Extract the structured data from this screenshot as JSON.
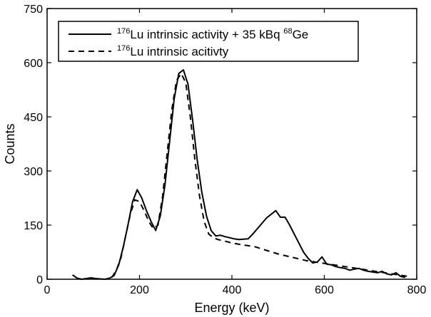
{
  "chart_data": {
    "type": "line",
    "title": "",
    "xlabel": "Energy (keV)",
    "ylabel": "Counts",
    "xlim": [
      0,
      800
    ],
    "ylim": [
      0,
      750
    ],
    "xticks": [
      "0",
      "200",
      "400",
      "600",
      "800"
    ],
    "yticks": [
      "0",
      "150",
      "300",
      "450",
      "600",
      "750"
    ],
    "grid": false,
    "legend_position": "top-left",
    "series": [
      {
        "name": "176Lu intrinsic activity + 35 kBq 68Ge",
        "legend": {
          "sup1": "176",
          "main1": "Lu intrinsic activity + 35 kBq ",
          "sup2": "68",
          "main2": "Ge"
        },
        "style": "solid",
        "color": "#000000",
        "x": [
          55,
          65,
          75,
          85,
          95,
          105,
          115,
          125,
          135,
          145,
          155,
          165,
          175,
          185,
          195,
          205,
          215,
          225,
          235,
          245,
          255,
          265,
          275,
          285,
          295,
          305,
          315,
          325,
          335,
          345,
          355,
          365,
          375,
          385,
          395,
          405,
          415,
          425,
          435,
          445,
          455,
          465,
          475,
          485,
          495,
          505,
          515,
          525,
          535,
          545,
          555,
          565,
          575,
          585,
          595,
          605,
          615,
          625,
          635,
          645,
          655,
          665,
          675,
          685,
          695,
          705,
          715,
          725,
          735,
          745,
          755,
          765,
          775
        ],
        "y": [
          12,
          3,
          0,
          2,
          4,
          2,
          1,
          0,
          3,
          10,
          40,
          90,
          150,
          215,
          248,
          225,
          190,
          160,
          135,
          175,
          260,
          380,
          500,
          570,
          580,
          540,
          440,
          330,
          240,
          175,
          135,
          120,
          122,
          118,
          115,
          112,
          110,
          111,
          112,
          125,
          140,
          155,
          170,
          180,
          190,
          172,
          172,
          150,
          125,
          100,
          75,
          58,
          45,
          48,
          62,
          42,
          40,
          35,
          32,
          30,
          25,
          28,
          30,
          25,
          22,
          20,
          18,
          22,
          15,
          12,
          18,
          8,
          5
        ]
      },
      {
        "name": "176Lu intrinsic acitivty",
        "legend": {
          "sup1": "176",
          "main1": "Lu intrinsic acitivty",
          "sup2": "",
          "main2": ""
        },
        "style": "dashed",
        "color": "#000000",
        "x": [
          140,
          150,
          160,
          170,
          180,
          190,
          200,
          210,
          220,
          230,
          240,
          250,
          260,
          270,
          280,
          290,
          300,
          310,
          320,
          330,
          340,
          350,
          360,
          370,
          380,
          390,
          400,
          410,
          420,
          430,
          440,
          450,
          460,
          470,
          480,
          490,
          500,
          510,
          520,
          530,
          540,
          550,
          560,
          570,
          580,
          590,
          600,
          610,
          620,
          630,
          640,
          650,
          660,
          670,
          680,
          690,
          700,
          710,
          720,
          730,
          740,
          750,
          760,
          770,
          780
        ],
        "y": [
          5,
          25,
          60,
          120,
          180,
          220,
          215,
          190,
          160,
          140,
          150,
          230,
          350,
          470,
          550,
          570,
          545,
          450,
          330,
          230,
          160,
          125,
          115,
          110,
          107,
          104,
          100,
          98,
          96,
          94,
          92,
          90,
          86,
          82,
          78,
          74,
          70,
          67,
          64,
          61,
          58,
          55,
          52,
          50,
          48,
          46,
          44,
          42,
          40,
          38,
          36,
          34,
          32,
          30,
          28,
          26,
          24,
          22,
          20,
          18,
          16,
          14,
          12,
          10,
          8
        ]
      }
    ]
  }
}
